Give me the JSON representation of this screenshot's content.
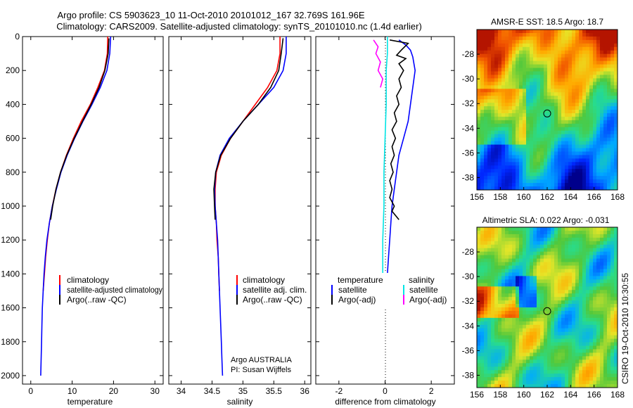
{
  "header": {
    "title_line1": "Argo profile: CS 5903623_10 11-Oct-2010 20101012_167 32.769S 161.96E",
    "title_line2": "Climatology: CARS2009. Satellite-adjusted climatology: synTS_20101010.nc (1.4d earlier)"
  },
  "colors": {
    "climatology": "#ff0000",
    "satellite": "#0000ff",
    "argo": "#000000",
    "satellite_salinity": "#00e5e5",
    "argo_salinity": "#ff00ff"
  },
  "chart_data": [
    {
      "type": "line",
      "xlabel": "temperature",
      "ylim": [
        0,
        2050
      ],
      "xlim": [
        -2,
        32
      ],
      "xticks": [
        0,
        10,
        20,
        30
      ],
      "yticks": [
        0,
        200,
        400,
        600,
        800,
        1000,
        1200,
        1400,
        1600,
        1800,
        2000
      ],
      "legend": [
        "climatology",
        "satellite-adjusted climatology",
        "Argo(..raw -QC)"
      ],
      "series": [
        {
          "name": "climatology",
          "color": "#ff0000",
          "points": [
            [
              18.6,
              0
            ],
            [
              18.5,
              100
            ],
            [
              17.8,
              200
            ],
            [
              16.2,
              300
            ],
            [
              14.4,
              400
            ],
            [
              12.2,
              500
            ],
            [
              10.3,
              600
            ],
            [
              8.6,
              700
            ],
            [
              7.2,
              800
            ],
            [
              6.1,
              900
            ],
            [
              5.2,
              1000
            ],
            [
              4.5,
              1100
            ],
            [
              4.0,
              1200
            ],
            [
              3.6,
              1300
            ],
            [
              3.3,
              1400
            ],
            [
              3.0,
              1500
            ]
          ]
        },
        {
          "name": "satellite-adjusted climatology",
          "color": "#0000ff",
          "points": [
            [
              19.3,
              0
            ],
            [
              19.1,
              100
            ],
            [
              18.4,
              200
            ],
            [
              16.8,
              300
            ],
            [
              14.8,
              400
            ],
            [
              12.6,
              500
            ],
            [
              10.6,
              600
            ],
            [
              8.8,
              700
            ],
            [
              7.3,
              800
            ],
            [
              6.2,
              900
            ],
            [
              5.2,
              1000
            ],
            [
              4.5,
              1100
            ],
            [
              3.9,
              1200
            ],
            [
              3.5,
              1300
            ],
            [
              3.2,
              1400
            ],
            [
              3.0,
              1500
            ],
            [
              2.8,
              1600
            ],
            [
              2.7,
              1700
            ],
            [
              2.6,
              1800
            ],
            [
              2.5,
              1900
            ],
            [
              2.4,
              2000
            ]
          ]
        },
        {
          "name": "Argo(..raw -QC)",
          "color": "#000000",
          "points": [
            [
              18.9,
              10
            ],
            [
              18.7,
              100
            ],
            [
              17.9,
              200
            ],
            [
              16.5,
              300
            ],
            [
              14.6,
              400
            ],
            [
              12.5,
              500
            ],
            [
              10.5,
              600
            ],
            [
              8.7,
              700
            ],
            [
              7.2,
              800
            ],
            [
              6.1,
              900
            ],
            [
              5.3,
              1000
            ],
            [
              4.8,
              1080
            ]
          ]
        }
      ]
    },
    {
      "type": "line",
      "xlabel": "salinity",
      "ylim": [
        0,
        2050
      ],
      "xlim": [
        33.8,
        36.1
      ],
      "xticks": [
        34,
        34.5,
        35,
        35.5,
        36
      ],
      "legend": [
        "climatology",
        "satellite adj. clim.",
        "Argo(..raw -QC)"
      ],
      "series": [
        {
          "name": "climatology",
          "color": "#ff0000",
          "points": [
            [
              35.6,
              0
            ],
            [
              35.6,
              100
            ],
            [
              35.55,
              200
            ],
            [
              35.4,
              300
            ],
            [
              35.2,
              400
            ],
            [
              35.0,
              500
            ],
            [
              34.8,
              600
            ],
            [
              34.65,
              700
            ],
            [
              34.57,
              800
            ],
            [
              34.55,
              900
            ],
            [
              34.55,
              1000
            ],
            [
              34.57,
              1100
            ],
            [
              34.58,
              1200
            ],
            [
              34.6,
              1300
            ],
            [
              34.61,
              1400
            ],
            [
              34.62,
              1500
            ]
          ]
        },
        {
          "name": "satellite adj. clim.",
          "color": "#0000ff",
          "points": [
            [
              35.7,
              0
            ],
            [
              35.7,
              100
            ],
            [
              35.65,
              200
            ],
            [
              35.5,
              300
            ],
            [
              35.25,
              400
            ],
            [
              35.0,
              500
            ],
            [
              34.78,
              600
            ],
            [
              34.63,
              700
            ],
            [
              34.56,
              800
            ],
            [
              34.54,
              900
            ],
            [
              34.55,
              1000
            ],
            [
              34.57,
              1100
            ],
            [
              34.59,
              1200
            ],
            [
              34.6,
              1300
            ],
            [
              34.61,
              1400
            ],
            [
              34.62,
              1500
            ],
            [
              34.63,
              1600
            ],
            [
              34.64,
              1700
            ],
            [
              34.65,
              1800
            ],
            [
              34.66,
              1900
            ],
            [
              34.67,
              2000
            ]
          ]
        },
        {
          "name": "Argo(..raw -QC)",
          "color": "#000000",
          "points": [
            [
              35.65,
              10
            ],
            [
              35.62,
              100
            ],
            [
              35.58,
              200
            ],
            [
              35.45,
              300
            ],
            [
              35.25,
              400
            ],
            [
              35.0,
              500
            ],
            [
              34.8,
              600
            ],
            [
              34.64,
              700
            ],
            [
              34.56,
              800
            ],
            [
              34.53,
              900
            ],
            [
              34.54,
              1000
            ],
            [
              34.55,
              1080
            ]
          ]
        }
      ],
      "annotation_line1": "Argo AUSTRALIA",
      "annotation_line2": "PI: Susan Wijffels"
    },
    {
      "type": "line",
      "xlabel": "difference from climatology",
      "ylim": [
        0,
        2050
      ],
      "xlim": [
        -3,
        3
      ],
      "xticks": [
        -2,
        0,
        2
      ],
      "legend_headers": [
        "temperature",
        "salinity"
      ],
      "legend": [
        "satellite",
        "Argo(-adj)",
        "satellite",
        "Argo(-adj)"
      ],
      "series": [
        {
          "name": "satellite",
          "color": "#0000ff",
          "points": [
            [
              0.6,
              20
            ],
            [
              0.9,
              50
            ],
            [
              1.1,
              80
            ],
            [
              1.2,
              120
            ],
            [
              1.3,
              200
            ],
            [
              1.2,
              300
            ],
            [
              1.1,
              400
            ],
            [
              1.0,
              500
            ],
            [
              0.8,
              600
            ],
            [
              0.6,
              700
            ],
            [
              0.5,
              800
            ],
            [
              0.4,
              900
            ],
            [
              0.3,
              1000
            ],
            [
              0.25,
              1100
            ],
            [
              0.2,
              1200
            ],
            [
              0.15,
              1300
            ],
            [
              0.1,
              1400
            ],
            [
              0.1,
              1500
            ]
          ]
        },
        {
          "name": "Argo(-adj)",
          "color": "#000000",
          "points": [
            [
              0.2,
              20
            ],
            [
              1.0,
              40
            ],
            [
              0.7,
              80
            ],
            [
              0.5,
              110
            ],
            [
              0.9,
              130
            ],
            [
              0.6,
              160
            ],
            [
              0.8,
              200
            ],
            [
              0.6,
              250
            ],
            [
              0.7,
              300
            ],
            [
              0.5,
              350
            ],
            [
              0.6,
              400
            ],
            [
              0.4,
              450
            ],
            [
              0.5,
              500
            ],
            [
              0.3,
              550
            ],
            [
              0.45,
              600
            ],
            [
              0.3,
              650
            ],
            [
              0.4,
              700
            ],
            [
              0.25,
              750
            ],
            [
              0.35,
              800
            ],
            [
              0.2,
              850
            ],
            [
              0.3,
              900
            ],
            [
              0.2,
              950
            ],
            [
              0.4,
              1000
            ],
            [
              0.3,
              1030
            ],
            [
              0.6,
              1080
            ]
          ]
        },
        {
          "name": "satellite",
          "color": "#00e5e5",
          "points": [
            [
              0.1,
              0
            ],
            [
              0.1,
              100
            ],
            [
              0.05,
              200
            ],
            [
              0.05,
              400
            ],
            [
              0.0,
              600
            ],
            [
              -0.05,
              800
            ],
            [
              -0.05,
              1000
            ],
            [
              -0.1,
              1200
            ],
            [
              -0.1,
              1400
            ],
            [
              -0.1,
              1500
            ]
          ]
        },
        {
          "name": "Argo(-adj)",
          "color": "#ff00ff",
          "points": [
            [
              -0.5,
              20
            ],
            [
              -0.3,
              60
            ],
            [
              -0.4,
              100
            ],
            [
              -0.2,
              150
            ],
            [
              -0.3,
              200
            ],
            [
              -0.1,
              250
            ],
            [
              -0.2,
              300
            ]
          ]
        }
      ]
    },
    {
      "type": "heatmap",
      "title": "AMSR-E SST: 18.5 Argo: 18.7",
      "xticks": [
        156,
        158,
        160,
        162,
        164,
        166,
        168
      ],
      "yticks": [
        -28,
        -30,
        -32,
        -34,
        -36,
        -38
      ],
      "xlim": [
        156,
        168
      ],
      "ylim": [
        -39,
        -26
      ],
      "marker": [
        162,
        -32.8
      ]
    },
    {
      "type": "heatmap",
      "title": "Altimetric SLA: 0.022 Argo: -0.031",
      "xticks": [
        156,
        158,
        160,
        162,
        164,
        166,
        168
      ],
      "yticks": [
        -28,
        -30,
        -32,
        -34,
        -36,
        -38
      ],
      "xlim": [
        156,
        168
      ],
      "ylim": [
        -39,
        -26
      ],
      "marker": [
        162,
        -32.8
      ]
    }
  ],
  "side_label": "CSIRO 19-Oct-2010 10:30:55"
}
